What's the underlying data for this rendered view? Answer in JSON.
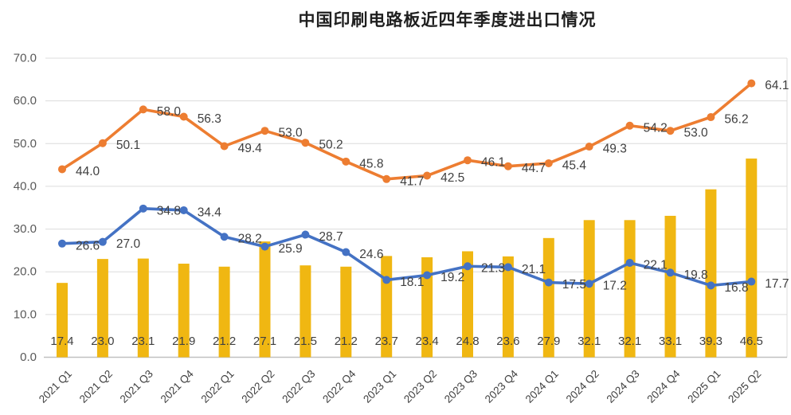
{
  "chart_data": {
    "type": "combo",
    "title": "中国印刷电路板近四年季度进出口情况",
    "categories": [
      "2021 Q1",
      "2021 Q2",
      "2021 Q3",
      "2021 Q4",
      "2022 Q1",
      "2022 Q2",
      "2022 Q3",
      "2022 Q4",
      "2023 Q1",
      "2023 Q2",
      "2023 Q3",
      "2023 Q4",
      "2024 Q1",
      "2024 Q2",
      "2024 Q3",
      "2024 Q4",
      "2025 Q1",
      "2025 Q2"
    ],
    "series": [
      {
        "name": "bar-series",
        "type": "bar",
        "color": "#F0B712",
        "values": [
          17.4,
          23.0,
          23.1,
          21.9,
          21.2,
          27.1,
          21.5,
          21.2,
          23.7,
          23.4,
          24.8,
          23.6,
          27.9,
          32.1,
          32.1,
          33.1,
          39.3,
          46.5
        ]
      },
      {
        "name": "line-series-1",
        "type": "line",
        "color": "#ED7D31",
        "values": [
          44.0,
          50.1,
          58.0,
          56.3,
          49.4,
          53.0,
          50.2,
          45.8,
          41.7,
          42.5,
          46.1,
          44.7,
          45.4,
          49.3,
          54.2,
          53.0,
          56.2,
          64.1
        ]
      },
      {
        "name": "line-series-2",
        "type": "line",
        "color": "#4472C4",
        "values": [
          26.6,
          27.0,
          34.8,
          34.4,
          28.2,
          25.9,
          28.7,
          24.6,
          18.1,
          19.2,
          21.3,
          21.1,
          17.5,
          17.2,
          22.1,
          19.8,
          16.8,
          17.7
        ]
      }
    ],
    "y_axis": {
      "min": 0,
      "max": 70,
      "step": 10,
      "tick_labels": [
        "0.0",
        "10.0",
        "20.0",
        "30.0",
        "40.0",
        "50.0",
        "60.0",
        "70.0"
      ]
    },
    "x_tick_rotation": -45,
    "grid": true,
    "legend_position": "none",
    "value_label_decimals": 1,
    "colors": {
      "bar": "#F0B712",
      "line1": "#ED7D31",
      "line2": "#4472C4",
      "data_label": "#404040",
      "y_tick_label": "#595959",
      "x_tick_label": "#404040",
      "gridline": "#DCDCDC",
      "axis_line": "#C0C0C0",
      "title": "#1F1F1F",
      "background": "#FFFFFF"
    }
  }
}
